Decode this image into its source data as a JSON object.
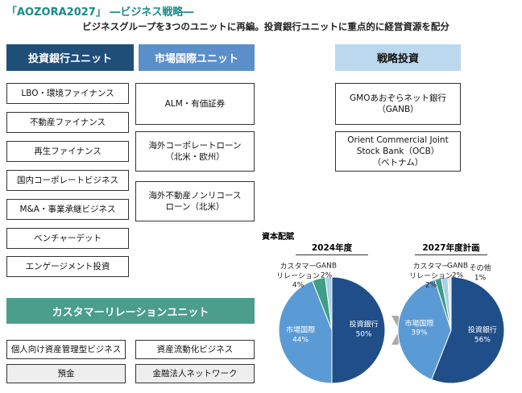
{
  "header": {
    "title": "「AOZORA2027」 ―ビジネス戦略―",
    "subtitle": "ビジネスグループを3つのユニットに再編。投資銀行ユニットに重点的に経営資源を配分"
  },
  "investment_banking": {
    "title": "投資銀行ユニット",
    "items": [
      "LBO・環境ファイナンス",
      "不動産ファイナンス",
      "再生ファイナンス",
      "国内コーポレートビジネス",
      "M&A・事業承継ビジネス",
      "ベンチャーデット",
      "エンゲージメント投資"
    ]
  },
  "markets_international": {
    "title": "市場国際ユニット",
    "items": [
      "ALM・有価証券",
      "海外コーポレートローン\n（北米・欧州）",
      "海外不動産ノンリコース\nローン（北米）"
    ]
  },
  "strategic_investment": {
    "title": "戦略投資",
    "items": [
      "GMOあおぞらネット銀行\n（GANB）",
      "Orient Commercial Joint\nStock Bank（OCB）\n（ベトナム）"
    ]
  },
  "customer_relations": {
    "title": "カスタマーリレーションユニット",
    "items": [
      "個人向け資産管理型ビジネス",
      "資産流動化ビジネス",
      "預金",
      "金融法人ネットワーク"
    ]
  },
  "section_title": "資本配賦",
  "chart_data": [
    {
      "type": "pie",
      "title": "2024年度",
      "categories": [
        "投資銀行",
        "市場国際",
        "カスタマー\nリレーション",
        "GANB"
      ],
      "values": [
        50,
        44,
        4,
        2
      ],
      "value_labels": [
        "50%",
        "44%",
        "4%",
        "2%"
      ],
      "colors": [
        "#1f4e89",
        "#5b9bd5",
        "#3f9e85",
        "#a9cfe8"
      ]
    },
    {
      "type": "pie",
      "title": "2027年度計画",
      "categories": [
        "投資銀行",
        "市場国際",
        "カスタマー\nリレーション",
        "GANB",
        "その他"
      ],
      "values": [
        56,
        39,
        2,
        2,
        1
      ],
      "value_labels": [
        "56%",
        "39%",
        "2%",
        "2%",
        "1%"
      ],
      "colors": [
        "#1f4e89",
        "#5b9bd5",
        "#3f9e85",
        "#a9cfe8",
        "#e4e4e4"
      ]
    }
  ]
}
